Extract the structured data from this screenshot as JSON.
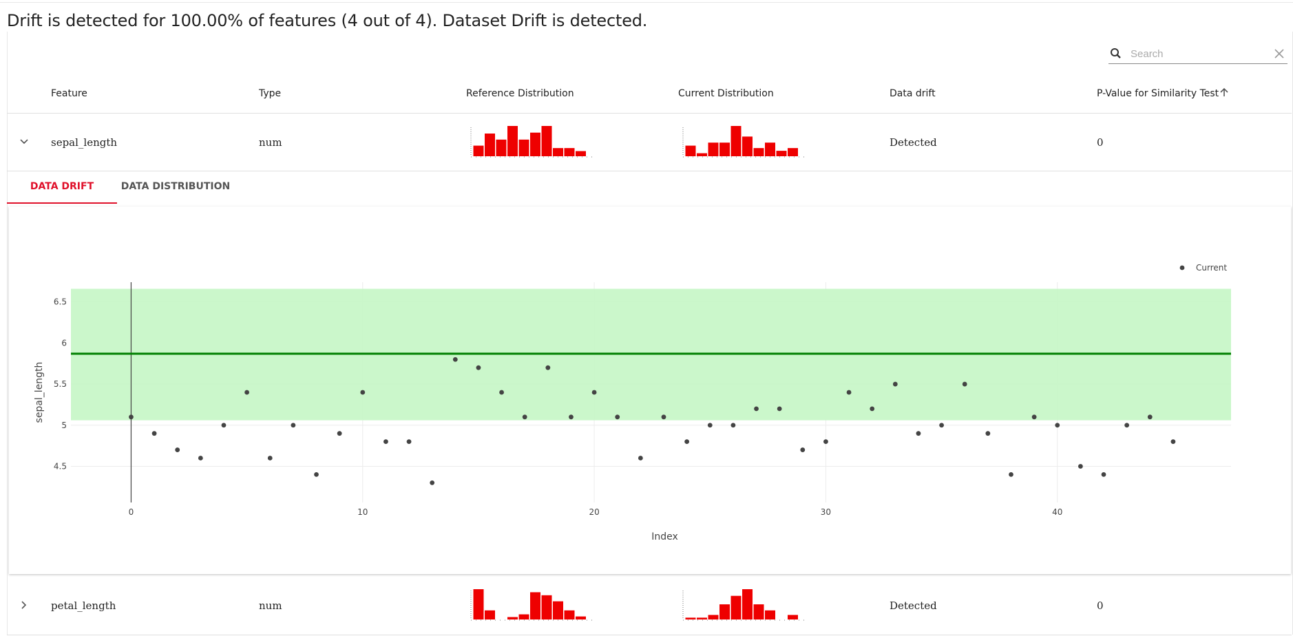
{
  "summary": "Drift is detected for 100.00% of features (4 out of 4). Dataset Drift is detected.",
  "search": {
    "placeholder": "Search",
    "icon": "search-icon",
    "clear_icon": "close-icon"
  },
  "columns": {
    "feature": "Feature",
    "type": "Type",
    "reference": "Reference Distribution",
    "current": "Current Distribution",
    "drift": "Data drift",
    "pvalue": "P-Value for Similarity Test",
    "sort_icon": "arrow-up-icon"
  },
  "rows": [
    {
      "feature": "sepal_length",
      "type": "num",
      "drift": "Detected",
      "pvalue": "0",
      "expanded": true,
      "ref_hist": [
        0.35,
        0.75,
        0.55,
        1.0,
        0.55,
        0.78,
        1.0,
        0.27,
        0.27,
        0.17
      ],
      "cur_hist": [
        0.35,
        0.1,
        0.45,
        0.45,
        1.0,
        0.65,
        0.27,
        0.45,
        0.18,
        0.27
      ]
    },
    {
      "feature": "petal_length",
      "type": "num",
      "drift": "Detected",
      "pvalue": "0",
      "expanded": false,
      "ref_hist": [
        1.0,
        0.3,
        0.0,
        0.08,
        0.17,
        0.9,
        0.8,
        0.6,
        0.3,
        0.1
      ],
      "cur_hist": [
        0.06,
        0.06,
        0.15,
        0.5,
        0.78,
        1.0,
        0.5,
        0.3,
        0.0,
        0.15
      ]
    }
  ],
  "tabs": [
    {
      "label": "DATA DRIFT",
      "active": true
    },
    {
      "label": "DATA DISTRIBUTION",
      "active": false
    }
  ],
  "chart_data": {
    "type": "scatter",
    "xlabel": "Index",
    "ylabel": "sepal_length",
    "xlim": [
      -2.6,
      47.5
    ],
    "ylim": [
      4.06,
      6.74
    ],
    "xticks": [
      0,
      10,
      20,
      30,
      40
    ],
    "yticks": [
      4.5,
      5,
      5.5,
      6,
      6.5
    ],
    "ytick_labels": [
      "4.5",
      "5",
      "5.5",
      "6",
      "6.5"
    ],
    "legend": {
      "label": "Current",
      "placement": "top-right"
    },
    "reference_band": {
      "low": 5.06,
      "high": 6.66,
      "color": "#c8f7c8"
    },
    "reference_line": {
      "value": 5.87,
      "color": "#008000"
    },
    "point_color": "#444444",
    "grid": true,
    "series": [
      {
        "name": "Current",
        "x": [
          0,
          1,
          2,
          3,
          4,
          5,
          6,
          7,
          8,
          9,
          10,
          11,
          12,
          13,
          14,
          15,
          16,
          17,
          18,
          19,
          20,
          21,
          22,
          23,
          24,
          25,
          26,
          27,
          28,
          29,
          30,
          31,
          32,
          33,
          34,
          35,
          36,
          37,
          38,
          39,
          40,
          41,
          42,
          43,
          44,
          45
        ],
        "y": [
          5.1,
          4.9,
          4.7,
          4.6,
          5.0,
          5.4,
          4.6,
          5.0,
          4.4,
          4.9,
          5.4,
          4.8,
          4.8,
          4.3,
          5.8,
          5.7,
          5.4,
          5.1,
          5.7,
          5.1,
          5.4,
          5.1,
          4.6,
          5.1,
          4.8,
          5.0,
          5.0,
          5.2,
          5.2,
          4.7,
          4.8,
          5.4,
          5.2,
          5.5,
          4.9,
          5.0,
          5.5,
          4.9,
          4.4,
          5.1,
          5.0,
          4.5,
          4.4,
          5.0,
          5.1,
          4.8
        ]
      }
    ]
  }
}
